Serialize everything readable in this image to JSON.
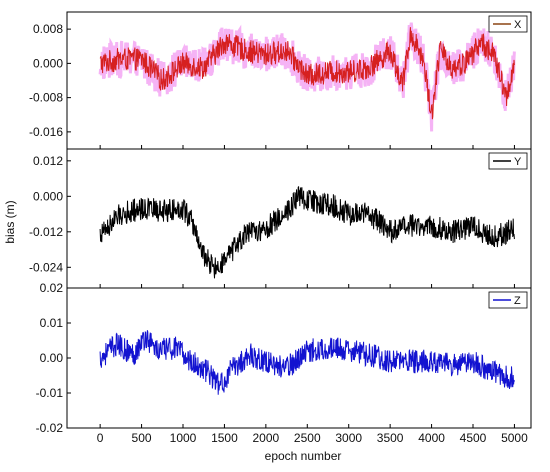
{
  "figure": {
    "xlabel": "epoch number",
    "ylabel": "bias (m)",
    "xlim": [
      -400,
      5200
    ],
    "x_ticks": [
      0,
      500,
      1000,
      1500,
      2000,
      2500,
      3000,
      3500,
      4000,
      4500,
      5000
    ],
    "x_tick_labels": [
      "0",
      "500",
      "1000",
      "1500",
      "2000",
      "2500",
      "3000",
      "3500",
      "4000",
      "4500",
      "5000"
    ]
  },
  "chart_data": [
    {
      "type": "line",
      "panel": "top",
      "legend": "X",
      "color": "#d62020",
      "legend_line_color": "#8b4513",
      "band_color": "#f3a6f3",
      "ylim": [
        -0.02,
        0.012
      ],
      "y_ticks": [
        0.008,
        0.0,
        -0.008,
        -0.016
      ],
      "y_tick_labels": [
        "0.008",
        "0.000",
        "-0.008",
        "-0.016"
      ],
      "x_samples": [
        0,
        250,
        500,
        750,
        1000,
        1250,
        1500,
        1750,
        2000,
        2250,
        2500,
        2750,
        3000,
        3250,
        3500,
        3650,
        3750,
        3900,
        4000,
        4100,
        4250,
        4400,
        4600,
        4750,
        4900,
        5000
      ],
      "y_samples": [
        0.0,
        0.001,
        0.001,
        -0.004,
        0.0,
        -0.001,
        0.005,
        0.003,
        0.002,
        0.003,
        -0.003,
        -0.002,
        -0.002,
        -0.001,
        0.003,
        -0.005,
        0.007,
        0.001,
        -0.012,
        0.003,
        -0.001,
        0.0,
        0.005,
        0.002,
        -0.008,
        0.0
      ],
      "legend_position": "top-right"
    },
    {
      "type": "line",
      "panel": "middle",
      "legend": "Y",
      "color": "#000000",
      "legend_line_color": "#000000",
      "ylim": [
        -0.031,
        0.016
      ],
      "y_ticks": [
        0.012,
        0.0,
        -0.012,
        -0.024
      ],
      "y_tick_labels": [
        "0.012",
        "0.000",
        "-0.012",
        "-0.024"
      ],
      "x_samples": [
        0,
        250,
        500,
        750,
        1000,
        1100,
        1250,
        1400,
        1500,
        1750,
        2000,
        2250,
        2400,
        2600,
        2800,
        3000,
        3250,
        3500,
        3750,
        4000,
        4250,
        4500,
        4750,
        5000
      ],
      "y_samples": [
        -0.013,
        -0.006,
        -0.004,
        -0.005,
        -0.004,
        -0.008,
        -0.02,
        -0.025,
        -0.022,
        -0.013,
        -0.011,
        -0.005,
        0.0,
        -0.002,
        -0.003,
        -0.006,
        -0.006,
        -0.012,
        -0.01,
        -0.01,
        -0.012,
        -0.01,
        -0.014,
        -0.011
      ],
      "legend_position": "top-right"
    },
    {
      "type": "line",
      "panel": "bottom",
      "legend": "Z",
      "color": "#1212d0",
      "legend_line_color": "#1212d0",
      "ylim": [
        -0.02,
        0.02
      ],
      "y_ticks": [
        0.02,
        0.01,
        0.0,
        -0.01,
        -0.02
      ],
      "y_tick_labels": [
        "0.02",
        "0.01",
        "0.00",
        "-0.01",
        "-0.02"
      ],
      "x_samples": [
        0,
        200,
        400,
        550,
        700,
        900,
        1100,
        1300,
        1450,
        1600,
        1800,
        2000,
        2250,
        2500,
        2750,
        3000,
        3250,
        3500,
        3750,
        4000,
        4250,
        4500,
        4750,
        5000
      ],
      "y_samples": [
        0.0,
        0.004,
        0.001,
        0.006,
        0.002,
        0.003,
        -0.001,
        -0.004,
        -0.008,
        -0.003,
        0.001,
        -0.001,
        -0.003,
        0.002,
        0.003,
        0.002,
        0.001,
        -0.001,
        -0.001,
        -0.001,
        -0.002,
        -0.001,
        -0.004,
        -0.006
      ],
      "legend_position": "top-right"
    }
  ]
}
